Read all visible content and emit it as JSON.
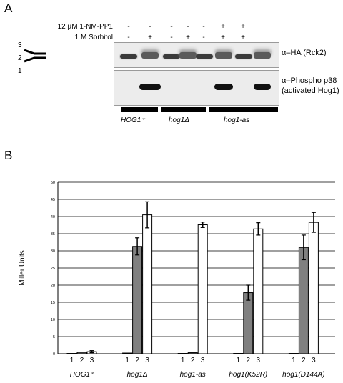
{
  "panel_a": {
    "label": "A",
    "condition_1_label": "12 µM 1-NM-PP1",
    "condition_2_label": "1 M Sorbitol",
    "condition_1_signs": [
      "-",
      "-",
      "-",
      "-",
      "-",
      "+",
      "+"
    ],
    "condition_2_signs": [
      "-",
      "+",
      "-",
      "+",
      "-",
      "+",
      "+"
    ],
    "size_markers": [
      "3",
      "2",
      "1"
    ],
    "blot_top_label": "α–HA (Rck2)",
    "blot_bottom_label_line1": "α–Phospho p38",
    "blot_bottom_label_line2": "(activated Hog1)",
    "genotypes": [
      "HOG1⁺",
      "hog1Δ",
      "hog1-as"
    ]
  },
  "panel_b": {
    "label": "B",
    "chart_data": {
      "type": "bar",
      "ylabel": "Miller Units",
      "ylim": [
        0,
        50
      ],
      "yticks": [
        0,
        5,
        10,
        15,
        20,
        25,
        30,
        35,
        40,
        45,
        50
      ],
      "grid": true,
      "lane_labels": [
        "1",
        "2",
        "3"
      ],
      "categories": [
        "HOG1⁺",
        "hog1Δ",
        "hog1-as",
        "hog1(K52R)",
        "hog1(D144A)"
      ],
      "series": [
        {
          "color": "#ffffff",
          "values": [
            0.1,
            0.2,
            0.1,
            0.1,
            0.1
          ],
          "errors": [
            0.05,
            0.1,
            0.05,
            0.05,
            0.05
          ]
        },
        {
          "color": "#808080",
          "values": [
            0.4,
            31.3,
            0.3,
            17.8,
            31.0
          ],
          "errors": [
            0.2,
            2.5,
            0.2,
            2.2,
            3.6
          ]
        },
        {
          "color": "#ffffff",
          "values": [
            0.6,
            40.5,
            37.6,
            36.4,
            38.3
          ],
          "errors": [
            0.3,
            3.8,
            0.8,
            1.8,
            2.9
          ]
        }
      ]
    }
  }
}
